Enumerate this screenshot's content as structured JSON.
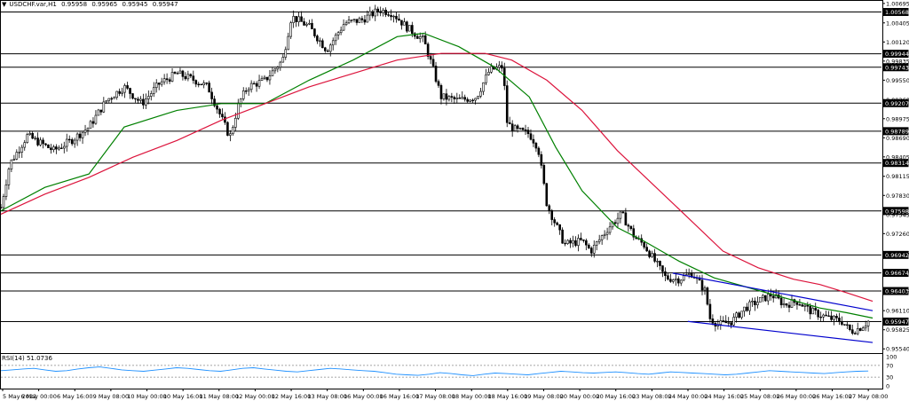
{
  "header": {
    "symbol": "USDCHF.var,H1",
    "open": "0.95958",
    "high": "0.95965",
    "low": "0.95945",
    "close": "0.95947"
  },
  "chart_data": [
    {
      "type": "candlestick",
      "symbol": "USDCHF.var",
      "timeframe": "H1",
      "price_axis_ticks": [
        "1.00695",
        "1.00405",
        "1.00120",
        "0.99835",
        "0.99550",
        "0.99260",
        "0.98975",
        "0.98690",
        "0.98405",
        "0.98115",
        "0.97830",
        "0.97545",
        "0.97260",
        "0.96975",
        "0.96690",
        "0.96405",
        "0.96110",
        "0.95825",
        "0.95540"
      ],
      "ylim": [
        0.9549,
        1.0072
      ],
      "horizontal_levels": [
        1.00568,
        0.99944,
        0.99743,
        0.99207,
        0.98789,
        0.98314,
        0.97598,
        0.96942,
        0.96674,
        0.96403,
        0.95947
      ],
      "level_labels": [
        "1.00568",
        "0.99944",
        "0.99743",
        "0.99207",
        "0.98789",
        "0.98314",
        "0.97598",
        "0.96942",
        "0.96674",
        "0.96403",
        "0.95947"
      ],
      "current_price": 0.95947,
      "time_axis_labels": [
        "5 May 2022",
        "6 May 00:00",
        "6 May 16:00",
        "9 May 08:00",
        "10 May 00:00",
        "10 May 16:00",
        "11 May 08:00",
        "12 May 00:00",
        "12 May 16:00",
        "13 May 08:00",
        "16 May 00:00",
        "16 May 16:00",
        "17 May 08:00",
        "18 May 00:00",
        "18 May 16:00",
        "19 May 08:00",
        "20 May 00:00",
        "20 May 16:00",
        "23 May 08:00",
        "24 May 00:00",
        "24 May 16:00",
        "25 May 08:00",
        "26 May 00:00",
        "26 May 16:00",
        "27 May 08:00"
      ],
      "price_path": [
        [
          0,
          0.9765
        ],
        [
          0.01,
          0.983
        ],
        [
          0.03,
          0.9872
        ],
        [
          0.06,
          0.985
        ],
        [
          0.08,
          0.9865
        ],
        [
          0.1,
          0.9885
        ],
        [
          0.12,
          0.9925
        ],
        [
          0.14,
          0.9945
        ],
        [
          0.16,
          0.992
        ],
        [
          0.18,
          0.995
        ],
        [
          0.2,
          0.9965
        ],
        [
          0.22,
          0.9955
        ],
        [
          0.235,
          0.9945
        ],
        [
          0.25,
          0.99
        ],
        [
          0.26,
          0.987
        ],
        [
          0.27,
          0.992
        ],
        [
          0.28,
          0.9945
        ],
        [
          0.3,
          0.9955
        ],
        [
          0.32,
          0.9985
        ],
        [
          0.33,
          1.005
        ],
        [
          0.35,
          1.0035
        ],
        [
          0.37,
          1.0
        ],
        [
          0.39,
          1.004
        ],
        [
          0.41,
          1.0045
        ],
        [
          0.43,
          1.006
        ],
        [
          0.445,
          1.0055
        ],
        [
          0.46,
          1.0035
        ],
        [
          0.48,
          1.0015
        ],
        [
          0.49,
          0.9975
        ],
        [
          0.5,
          0.993
        ],
        [
          0.52,
          0.9925
        ],
        [
          0.54,
          0.993
        ],
        [
          0.555,
          0.997
        ],
        [
          0.57,
          0.9975
        ],
        [
          0.575,
          0.989
        ],
        [
          0.585,
          0.988
        ],
        [
          0.6,
          0.9875
        ],
        [
          0.61,
          0.9855
        ],
        [
          0.62,
          0.977
        ],
        [
          0.63,
          0.974
        ],
        [
          0.64,
          0.971
        ],
        [
          0.66,
          0.9715
        ],
        [
          0.67,
          0.97
        ],
        [
          0.69,
          0.9735
        ],
        [
          0.705,
          0.9755
        ],
        [
          0.72,
          0.972
        ],
        [
          0.73,
          0.971
        ],
        [
          0.745,
          0.968
        ],
        [
          0.755,
          0.966
        ],
        [
          0.77,
          0.9658
        ],
        [
          0.785,
          0.9667
        ],
        [
          0.8,
          0.964
        ],
        [
          0.805,
          0.96
        ],
        [
          0.815,
          0.959
        ],
        [
          0.83,
          0.9595
        ],
        [
          0.845,
          0.9615
        ],
        [
          0.86,
          0.9625
        ],
        [
          0.875,
          0.9635
        ],
        [
          0.89,
          0.962
        ],
        [
          0.905,
          0.9625
        ],
        [
          0.92,
          0.961
        ],
        [
          0.94,
          0.96
        ],
        [
          0.955,
          0.9595
        ],
        [
          0.965,
          0.958
        ],
        [
          0.975,
          0.9585
        ],
        [
          0.985,
          0.9595
        ]
      ],
      "moving_averages": [
        {
          "color": "#008000",
          "path": [
            [
              0,
              0.976
            ],
            [
              0.05,
              0.9795
            ],
            [
              0.1,
              0.9815
            ],
            [
              0.14,
              0.9885
            ],
            [
              0.2,
              0.991
            ],
            [
              0.25,
              0.992
            ],
            [
              0.3,
              0.992
            ],
            [
              0.35,
              0.9955
            ],
            [
              0.4,
              0.9985
            ],
            [
              0.45,
              1.002
            ],
            [
              0.48,
              1.0025
            ],
            [
              0.52,
              1.0005
            ],
            [
              0.56,
              0.9975
            ],
            [
              0.6,
              0.993
            ],
            [
              0.63,
              0.9855
            ],
            [
              0.66,
              0.979
            ],
            [
              0.7,
              0.9735
            ],
            [
              0.73,
              0.9715
            ],
            [
              0.77,
              0.9685
            ],
            [
              0.81,
              0.966
            ],
            [
              0.85,
              0.9645
            ],
            [
              0.89,
              0.963
            ],
            [
              0.93,
              0.9615
            ],
            [
              0.96,
              0.9608
            ],
            [
              0.99,
              0.96
            ]
          ]
        },
        {
          "color": "#dc143c",
          "path": [
            [
              0,
              0.9755
            ],
            [
              0.05,
              0.9785
            ],
            [
              0.1,
              0.981
            ],
            [
              0.15,
              0.984
            ],
            [
              0.2,
              0.9865
            ],
            [
              0.25,
              0.9895
            ],
            [
              0.3,
              0.992
            ],
            [
              0.35,
              0.9945
            ],
            [
              0.4,
              0.9965
            ],
            [
              0.45,
              0.9985
            ],
            [
              0.5,
              0.9995
            ],
            [
              0.55,
              0.9995
            ],
            [
              0.58,
              0.9985
            ],
            [
              0.62,
              0.9955
            ],
            [
              0.66,
              0.991
            ],
            [
              0.7,
              0.985
            ],
            [
              0.74,
              0.98
            ],
            [
              0.78,
              0.975
            ],
            [
              0.82,
              0.97
            ],
            [
              0.86,
              0.9675
            ],
            [
              0.9,
              0.9658
            ],
            [
              0.93,
              0.965
            ],
            [
              0.96,
              0.9638
            ],
            [
              0.99,
              0.9625
            ]
          ]
        }
      ],
      "channel": {
        "color": "#0000cd",
        "upper": [
          [
            0.763,
            0.9667
          ],
          [
            0.99,
            0.9611
          ]
        ],
        "lower": [
          [
            0.78,
            0.9595
          ],
          [
            0.99,
            0.95635
          ]
        ]
      },
      "indicator": {
        "label": "RSI(14) 51.0736",
        "ticks": [
          "100",
          "70",
          "30",
          "0"
        ],
        "levels": [
          70,
          30
        ],
        "values": [
          52,
          55,
          58,
          60,
          55,
          50,
          52,
          58,
          62,
          65,
          60,
          55,
          52,
          50,
          54,
          58,
          62,
          60,
          56,
          52,
          50,
          55,
          60,
          62,
          58,
          54,
          50,
          48,
          52,
          56,
          60,
          58,
          55,
          52,
          50,
          45,
          40,
          38,
          36,
          40,
          45,
          42,
          38,
          35,
          40,
          44,
          42,
          40,
          38,
          42,
          46,
          50,
          48,
          45,
          44,
          46,
          48,
          45,
          42,
          40,
          44,
          48,
          46,
          44,
          42,
          40,
          38,
          40,
          44,
          48,
          52,
          50,
          48,
          46,
          44,
          42,
          45,
          48,
          50,
          51
        ]
      }
    }
  ]
}
